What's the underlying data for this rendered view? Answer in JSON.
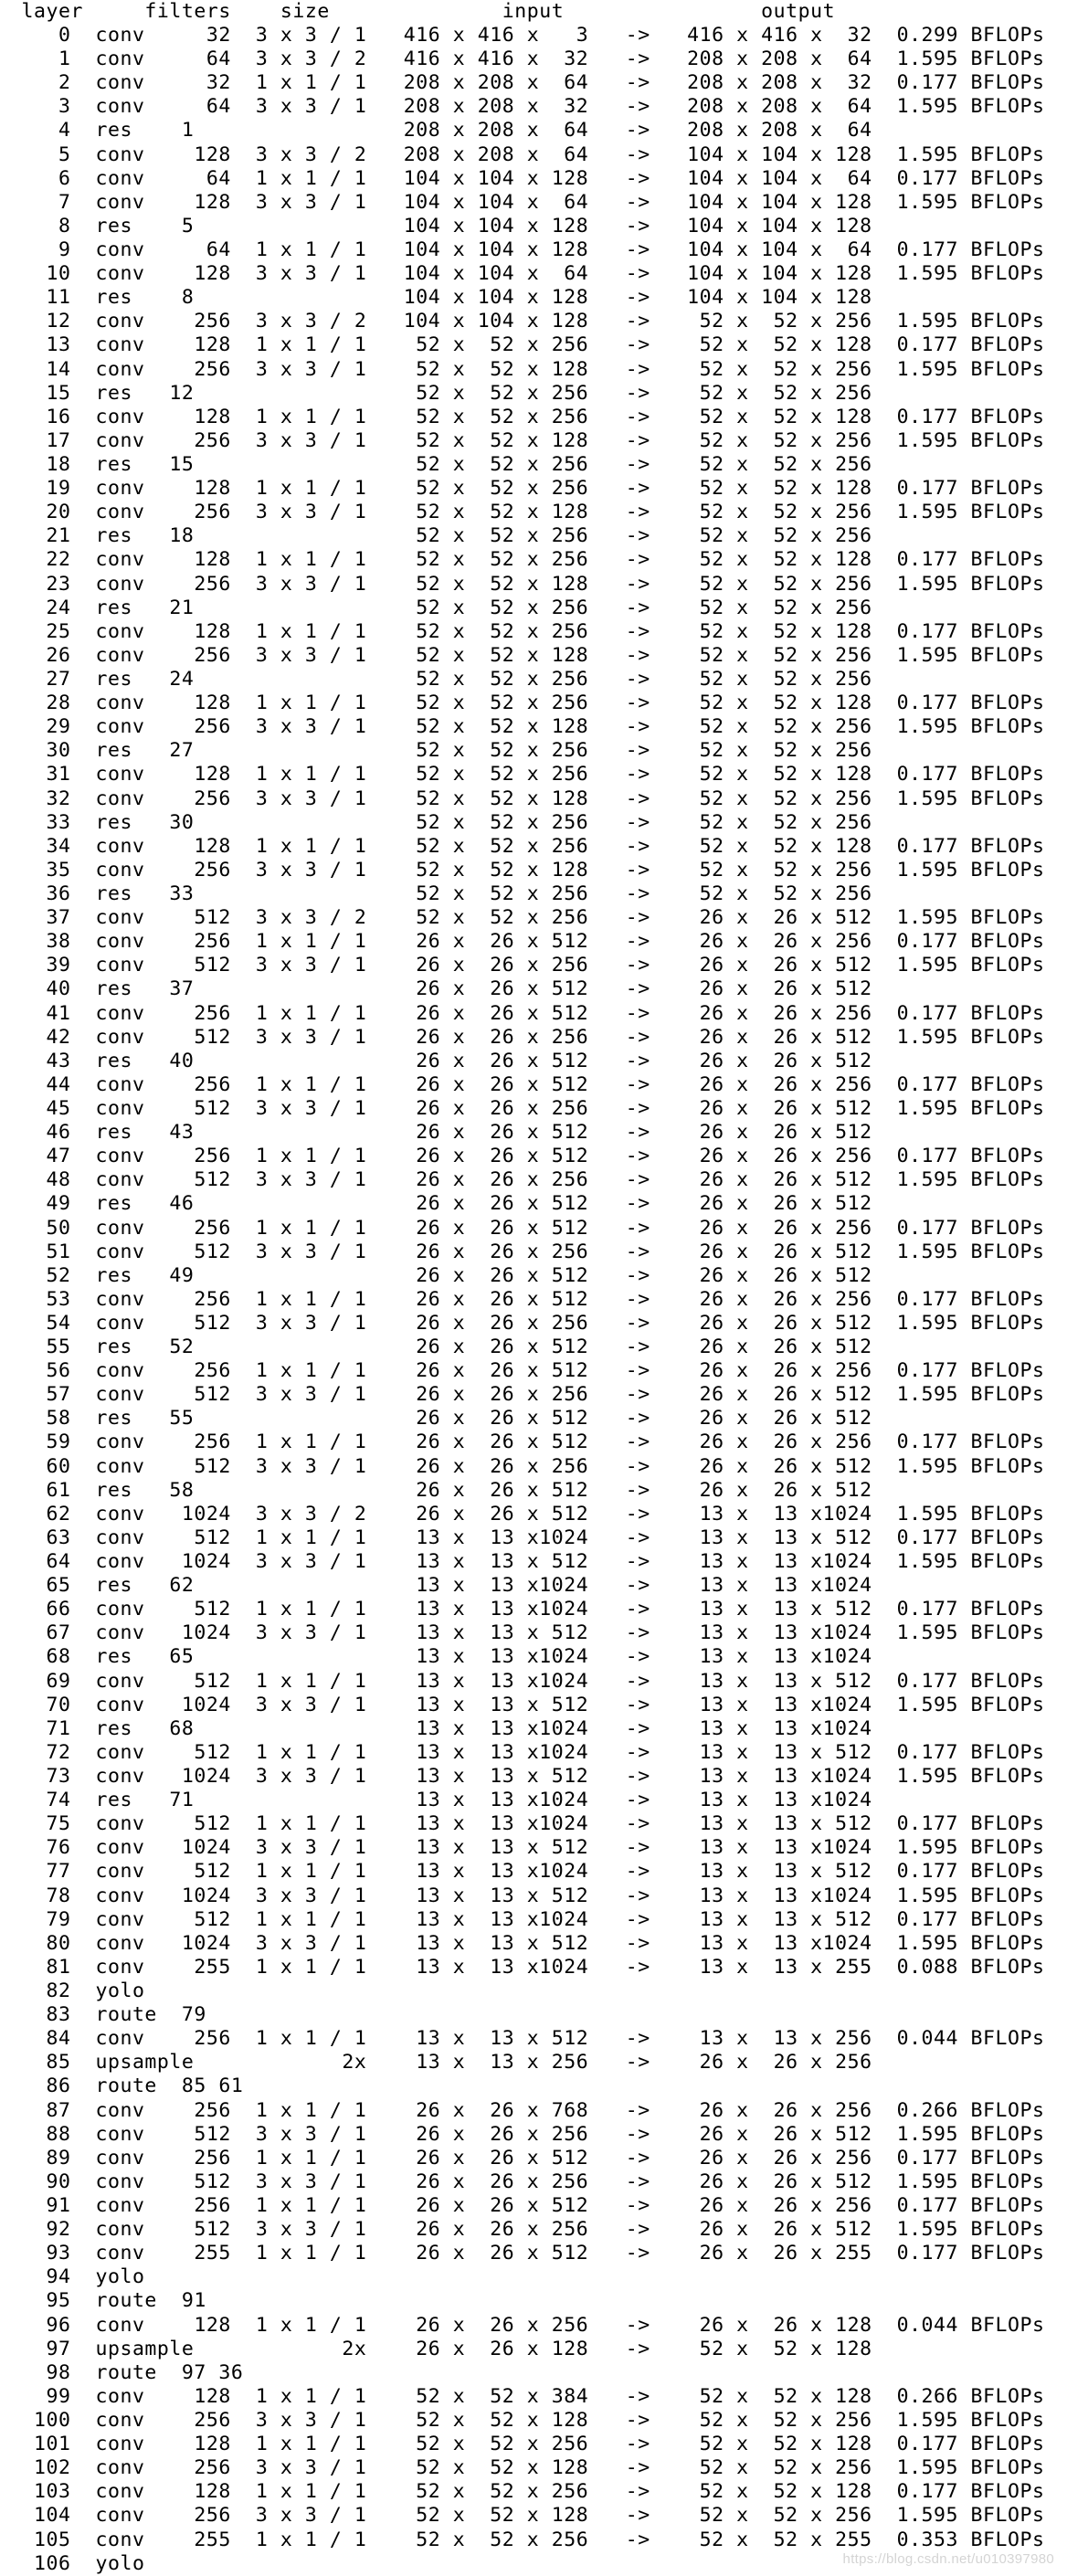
{
  "header": " layer     filters    size              input                output",
  "lines": [
    "    0  conv     32  3 x 3 / 1   416 x 416 x   3   ->   416 x 416 x  32  0.299 BFLOPs",
    "    1  conv     64  3 x 3 / 2   416 x 416 x  32   ->   208 x 208 x  64  1.595 BFLOPs",
    "    2  conv     32  1 x 1 / 1   208 x 208 x  64   ->   208 x 208 x  32  0.177 BFLOPs",
    "    3  conv     64  3 x 3 / 1   208 x 208 x  32   ->   208 x 208 x  64  1.595 BFLOPs",
    "    4  res    1                 208 x 208 x  64   ->   208 x 208 x  64",
    "    5  conv    128  3 x 3 / 2   208 x 208 x  64   ->   104 x 104 x 128  1.595 BFLOPs",
    "    6  conv     64  1 x 1 / 1   104 x 104 x 128   ->   104 x 104 x  64  0.177 BFLOPs",
    "    7  conv    128  3 x 3 / 1   104 x 104 x  64   ->   104 x 104 x 128  1.595 BFLOPs",
    "    8  res    5                 104 x 104 x 128   ->   104 x 104 x 128",
    "    9  conv     64  1 x 1 / 1   104 x 104 x 128   ->   104 x 104 x  64  0.177 BFLOPs",
    "   10  conv    128  3 x 3 / 1   104 x 104 x  64   ->   104 x 104 x 128  1.595 BFLOPs",
    "   11  res    8                 104 x 104 x 128   ->   104 x 104 x 128",
    "   12  conv    256  3 x 3 / 2   104 x 104 x 128   ->    52 x  52 x 256  1.595 BFLOPs",
    "   13  conv    128  1 x 1 / 1    52 x  52 x 256   ->    52 x  52 x 128  0.177 BFLOPs",
    "   14  conv    256  3 x 3 / 1    52 x  52 x 128   ->    52 x  52 x 256  1.595 BFLOPs",
    "   15  res   12                  52 x  52 x 256   ->    52 x  52 x 256",
    "   16  conv    128  1 x 1 / 1    52 x  52 x 256   ->    52 x  52 x 128  0.177 BFLOPs",
    "   17  conv    256  3 x 3 / 1    52 x  52 x 128   ->    52 x  52 x 256  1.595 BFLOPs",
    "   18  res   15                  52 x  52 x 256   ->    52 x  52 x 256",
    "   19  conv    128  1 x 1 / 1    52 x  52 x 256   ->    52 x  52 x 128  0.177 BFLOPs",
    "   20  conv    256  3 x 3 / 1    52 x  52 x 128   ->    52 x  52 x 256  1.595 BFLOPs",
    "   21  res   18                  52 x  52 x 256   ->    52 x  52 x 256",
    "   22  conv    128  1 x 1 / 1    52 x  52 x 256   ->    52 x  52 x 128  0.177 BFLOPs",
    "   23  conv    256  3 x 3 / 1    52 x  52 x 128   ->    52 x  52 x 256  1.595 BFLOPs",
    "   24  res   21                  52 x  52 x 256   ->    52 x  52 x 256",
    "   25  conv    128  1 x 1 / 1    52 x  52 x 256   ->    52 x  52 x 128  0.177 BFLOPs",
    "   26  conv    256  3 x 3 / 1    52 x  52 x 128   ->    52 x  52 x 256  1.595 BFLOPs",
    "   27  res   24                  52 x  52 x 256   ->    52 x  52 x 256",
    "   28  conv    128  1 x 1 / 1    52 x  52 x 256   ->    52 x  52 x 128  0.177 BFLOPs",
    "   29  conv    256  3 x 3 / 1    52 x  52 x 128   ->    52 x  52 x 256  1.595 BFLOPs",
    "   30  res   27                  52 x  52 x 256   ->    52 x  52 x 256",
    "   31  conv    128  1 x 1 / 1    52 x  52 x 256   ->    52 x  52 x 128  0.177 BFLOPs",
    "   32  conv    256  3 x 3 / 1    52 x  52 x 128   ->    52 x  52 x 256  1.595 BFLOPs",
    "   33  res   30                  52 x  52 x 256   ->    52 x  52 x 256",
    "   34  conv    128  1 x 1 / 1    52 x  52 x 256   ->    52 x  52 x 128  0.177 BFLOPs",
    "   35  conv    256  3 x 3 / 1    52 x  52 x 128   ->    52 x  52 x 256  1.595 BFLOPs",
    "   36  res   33                  52 x  52 x 256   ->    52 x  52 x 256",
    "   37  conv    512  3 x 3 / 2    52 x  52 x 256   ->    26 x  26 x 512  1.595 BFLOPs",
    "   38  conv    256  1 x 1 / 1    26 x  26 x 512   ->    26 x  26 x 256  0.177 BFLOPs",
    "   39  conv    512  3 x 3 / 1    26 x  26 x 256   ->    26 x  26 x 512  1.595 BFLOPs",
    "   40  res   37                  26 x  26 x 512   ->    26 x  26 x 512",
    "   41  conv    256  1 x 1 / 1    26 x  26 x 512   ->    26 x  26 x 256  0.177 BFLOPs",
    "   42  conv    512  3 x 3 / 1    26 x  26 x 256   ->    26 x  26 x 512  1.595 BFLOPs",
    "   43  res   40                  26 x  26 x 512   ->    26 x  26 x 512",
    "   44  conv    256  1 x 1 / 1    26 x  26 x 512   ->    26 x  26 x 256  0.177 BFLOPs",
    "   45  conv    512  3 x 3 / 1    26 x  26 x 256   ->    26 x  26 x 512  1.595 BFLOPs",
    "   46  res   43                  26 x  26 x 512   ->    26 x  26 x 512",
    "   47  conv    256  1 x 1 / 1    26 x  26 x 512   ->    26 x  26 x 256  0.177 BFLOPs",
    "   48  conv    512  3 x 3 / 1    26 x  26 x 256   ->    26 x  26 x 512  1.595 BFLOPs",
    "   49  res   46                  26 x  26 x 512   ->    26 x  26 x 512",
    "   50  conv    256  1 x 1 / 1    26 x  26 x 512   ->    26 x  26 x 256  0.177 BFLOPs",
    "   51  conv    512  3 x 3 / 1    26 x  26 x 256   ->    26 x  26 x 512  1.595 BFLOPs",
    "   52  res   49                  26 x  26 x 512   ->    26 x  26 x 512",
    "   53  conv    256  1 x 1 / 1    26 x  26 x 512   ->    26 x  26 x 256  0.177 BFLOPs",
    "   54  conv    512  3 x 3 / 1    26 x  26 x 256   ->    26 x  26 x 512  1.595 BFLOPs",
    "   55  res   52                  26 x  26 x 512   ->    26 x  26 x 512",
    "   56  conv    256  1 x 1 / 1    26 x  26 x 512   ->    26 x  26 x 256  0.177 BFLOPs",
    "   57  conv    512  3 x 3 / 1    26 x  26 x 256   ->    26 x  26 x 512  1.595 BFLOPs",
    "   58  res   55                  26 x  26 x 512   ->    26 x  26 x 512",
    "   59  conv    256  1 x 1 / 1    26 x  26 x 512   ->    26 x  26 x 256  0.177 BFLOPs",
    "   60  conv    512  3 x 3 / 1    26 x  26 x 256   ->    26 x  26 x 512  1.595 BFLOPs",
    "   61  res   58                  26 x  26 x 512   ->    26 x  26 x 512",
    "   62  conv   1024  3 x 3 / 2    26 x  26 x 512   ->    13 x  13 x1024  1.595 BFLOPs",
    "   63  conv    512  1 x 1 / 1    13 x  13 x1024   ->    13 x  13 x 512  0.177 BFLOPs",
    "   64  conv   1024  3 x 3 / 1    13 x  13 x 512   ->    13 x  13 x1024  1.595 BFLOPs",
    "   65  res   62                  13 x  13 x1024   ->    13 x  13 x1024",
    "   66  conv    512  1 x 1 / 1    13 x  13 x1024   ->    13 x  13 x 512  0.177 BFLOPs",
    "   67  conv   1024  3 x 3 / 1    13 x  13 x 512   ->    13 x  13 x1024  1.595 BFLOPs",
    "   68  res   65                  13 x  13 x1024   ->    13 x  13 x1024",
    "   69  conv    512  1 x 1 / 1    13 x  13 x1024   ->    13 x  13 x 512  0.177 BFLOPs",
    "   70  conv   1024  3 x 3 / 1    13 x  13 x 512   ->    13 x  13 x1024  1.595 BFLOPs",
    "   71  res   68                  13 x  13 x1024   ->    13 x  13 x1024",
    "   72  conv    512  1 x 1 / 1    13 x  13 x1024   ->    13 x  13 x 512  0.177 BFLOPs",
    "   73  conv   1024  3 x 3 / 1    13 x  13 x 512   ->    13 x  13 x1024  1.595 BFLOPs",
    "   74  res   71                  13 x  13 x1024   ->    13 x  13 x1024",
    "   75  conv    512  1 x 1 / 1    13 x  13 x1024   ->    13 x  13 x 512  0.177 BFLOPs",
    "   76  conv   1024  3 x 3 / 1    13 x  13 x 512   ->    13 x  13 x1024  1.595 BFLOPs",
    "   77  conv    512  1 x 1 / 1    13 x  13 x1024   ->    13 x  13 x 512  0.177 BFLOPs",
    "   78  conv   1024  3 x 3 / 1    13 x  13 x 512   ->    13 x  13 x1024  1.595 BFLOPs",
    "   79  conv    512  1 x 1 / 1    13 x  13 x1024   ->    13 x  13 x 512  0.177 BFLOPs",
    "   80  conv   1024  3 x 3 / 1    13 x  13 x 512   ->    13 x  13 x1024  1.595 BFLOPs",
    "   81  conv    255  1 x 1 / 1    13 x  13 x1024   ->    13 x  13 x 255  0.088 BFLOPs",
    "   82  yolo",
    "   83  route  79",
    "   84  conv    256  1 x 1 / 1    13 x  13 x 512   ->    13 x  13 x 256  0.044 BFLOPs",
    "   85  upsample            2x    13 x  13 x 256   ->    26 x  26 x 256",
    "   86  route  85 61",
    "   87  conv    256  1 x 1 / 1    26 x  26 x 768   ->    26 x  26 x 256  0.266 BFLOPs",
    "   88  conv    512  3 x 3 / 1    26 x  26 x 256   ->    26 x  26 x 512  1.595 BFLOPs",
    "   89  conv    256  1 x 1 / 1    26 x  26 x 512   ->    26 x  26 x 256  0.177 BFLOPs",
    "   90  conv    512  3 x 3 / 1    26 x  26 x 256   ->    26 x  26 x 512  1.595 BFLOPs",
    "   91  conv    256  1 x 1 / 1    26 x  26 x 512   ->    26 x  26 x 256  0.177 BFLOPs",
    "   92  conv    512  3 x 3 / 1    26 x  26 x 256   ->    26 x  26 x 512  1.595 BFLOPs",
    "   93  conv    255  1 x 1 / 1    26 x  26 x 512   ->    26 x  26 x 255  0.177 BFLOPs",
    "   94  yolo",
    "   95  route  91",
    "   96  conv    128  1 x 1 / 1    26 x  26 x 256   ->    26 x  26 x 128  0.044 BFLOPs",
    "   97  upsample            2x    26 x  26 x 128   ->    52 x  52 x 128",
    "   98  route  97 36",
    "   99  conv    128  1 x 1 / 1    52 x  52 x 384   ->    52 x  52 x 128  0.266 BFLOPs",
    "  100  conv    256  3 x 3 / 1    52 x  52 x 128   ->    52 x  52 x 256  1.595 BFLOPs",
    "  101  conv    128  1 x 1 / 1    52 x  52 x 256   ->    52 x  52 x 128  0.177 BFLOPs",
    "  102  conv    256  3 x 3 / 1    52 x  52 x 128   ->    52 x  52 x 256  1.595 BFLOPs",
    "  103  conv    128  1 x 1 / 1    52 x  52 x 256   ->    52 x  52 x 128  0.177 BFLOPs",
    "  104  conv    256  3 x 3 / 1    52 x  52 x 128   ->    52 x  52 x 256  1.595 BFLOPs",
    "  105  conv    255  1 x 1 / 1    52 x  52 x 256   ->    52 x  52 x 255  0.353 BFLOPs",
    "  106  yolo"
  ],
  "watermark": "https://blog.csdn.net/u010397980",
  "colors": {
    "background": "#ffffff",
    "text": "#000000",
    "watermark": "#d4d4d4"
  }
}
